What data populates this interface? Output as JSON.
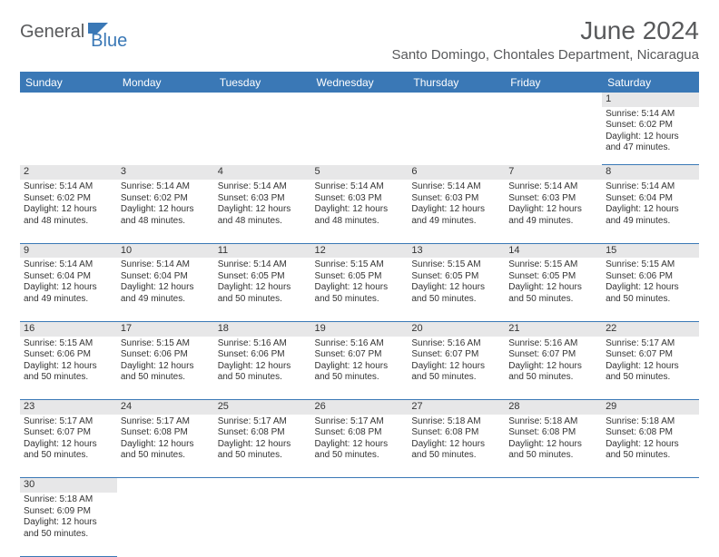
{
  "logo": {
    "text1": "General",
    "text2": "Blue",
    "shape_color": "#3a78b6"
  },
  "title": "June 2024",
  "location": "Santo Domingo, Chontales Department, Nicaragua",
  "colors": {
    "header_bg": "#3a78b6",
    "header_fg": "#ffffff",
    "daynum_bg": "#e7e7e8",
    "rule": "#3a78b6",
    "text": "#333333",
    "logo_gray": "#58595b"
  },
  "day_headers": [
    "Sunday",
    "Monday",
    "Tuesday",
    "Wednesday",
    "Thursday",
    "Friday",
    "Saturday"
  ],
  "weeks": [
    [
      null,
      null,
      null,
      null,
      null,
      null,
      {
        "n": "1",
        "sr": "5:14 AM",
        "ss": "6:02 PM",
        "dl": "12 hours and 47 minutes."
      }
    ],
    [
      {
        "n": "2",
        "sr": "5:14 AM",
        "ss": "6:02 PM",
        "dl": "12 hours and 48 minutes."
      },
      {
        "n": "3",
        "sr": "5:14 AM",
        "ss": "6:02 PM",
        "dl": "12 hours and 48 minutes."
      },
      {
        "n": "4",
        "sr": "5:14 AM",
        "ss": "6:03 PM",
        "dl": "12 hours and 48 minutes."
      },
      {
        "n": "5",
        "sr": "5:14 AM",
        "ss": "6:03 PM",
        "dl": "12 hours and 48 minutes."
      },
      {
        "n": "6",
        "sr": "5:14 AM",
        "ss": "6:03 PM",
        "dl": "12 hours and 49 minutes."
      },
      {
        "n": "7",
        "sr": "5:14 AM",
        "ss": "6:03 PM",
        "dl": "12 hours and 49 minutes."
      },
      {
        "n": "8",
        "sr": "5:14 AM",
        "ss": "6:04 PM",
        "dl": "12 hours and 49 minutes."
      }
    ],
    [
      {
        "n": "9",
        "sr": "5:14 AM",
        "ss": "6:04 PM",
        "dl": "12 hours and 49 minutes."
      },
      {
        "n": "10",
        "sr": "5:14 AM",
        "ss": "6:04 PM",
        "dl": "12 hours and 49 minutes."
      },
      {
        "n": "11",
        "sr": "5:14 AM",
        "ss": "6:05 PM",
        "dl": "12 hours and 50 minutes."
      },
      {
        "n": "12",
        "sr": "5:15 AM",
        "ss": "6:05 PM",
        "dl": "12 hours and 50 minutes."
      },
      {
        "n": "13",
        "sr": "5:15 AM",
        "ss": "6:05 PM",
        "dl": "12 hours and 50 minutes."
      },
      {
        "n": "14",
        "sr": "5:15 AM",
        "ss": "6:05 PM",
        "dl": "12 hours and 50 minutes."
      },
      {
        "n": "15",
        "sr": "5:15 AM",
        "ss": "6:06 PM",
        "dl": "12 hours and 50 minutes."
      }
    ],
    [
      {
        "n": "16",
        "sr": "5:15 AM",
        "ss": "6:06 PM",
        "dl": "12 hours and 50 minutes."
      },
      {
        "n": "17",
        "sr": "5:15 AM",
        "ss": "6:06 PM",
        "dl": "12 hours and 50 minutes."
      },
      {
        "n": "18",
        "sr": "5:16 AM",
        "ss": "6:06 PM",
        "dl": "12 hours and 50 minutes."
      },
      {
        "n": "19",
        "sr": "5:16 AM",
        "ss": "6:07 PM",
        "dl": "12 hours and 50 minutes."
      },
      {
        "n": "20",
        "sr": "5:16 AM",
        "ss": "6:07 PM",
        "dl": "12 hours and 50 minutes."
      },
      {
        "n": "21",
        "sr": "5:16 AM",
        "ss": "6:07 PM",
        "dl": "12 hours and 50 minutes."
      },
      {
        "n": "22",
        "sr": "5:17 AM",
        "ss": "6:07 PM",
        "dl": "12 hours and 50 minutes."
      }
    ],
    [
      {
        "n": "23",
        "sr": "5:17 AM",
        "ss": "6:07 PM",
        "dl": "12 hours and 50 minutes."
      },
      {
        "n": "24",
        "sr": "5:17 AM",
        "ss": "6:08 PM",
        "dl": "12 hours and 50 minutes."
      },
      {
        "n": "25",
        "sr": "5:17 AM",
        "ss": "6:08 PM",
        "dl": "12 hours and 50 minutes."
      },
      {
        "n": "26",
        "sr": "5:17 AM",
        "ss": "6:08 PM",
        "dl": "12 hours and 50 minutes."
      },
      {
        "n": "27",
        "sr": "5:18 AM",
        "ss": "6:08 PM",
        "dl": "12 hours and 50 minutes."
      },
      {
        "n": "28",
        "sr": "5:18 AM",
        "ss": "6:08 PM",
        "dl": "12 hours and 50 minutes."
      },
      {
        "n": "29",
        "sr": "5:18 AM",
        "ss": "6:08 PM",
        "dl": "12 hours and 50 minutes."
      }
    ],
    [
      {
        "n": "30",
        "sr": "5:18 AM",
        "ss": "6:09 PM",
        "dl": "12 hours and 50 minutes."
      },
      null,
      null,
      null,
      null,
      null,
      null
    ]
  ],
  "labels": {
    "sunrise": "Sunrise:",
    "sunset": "Sunset:",
    "daylight": "Daylight:"
  }
}
